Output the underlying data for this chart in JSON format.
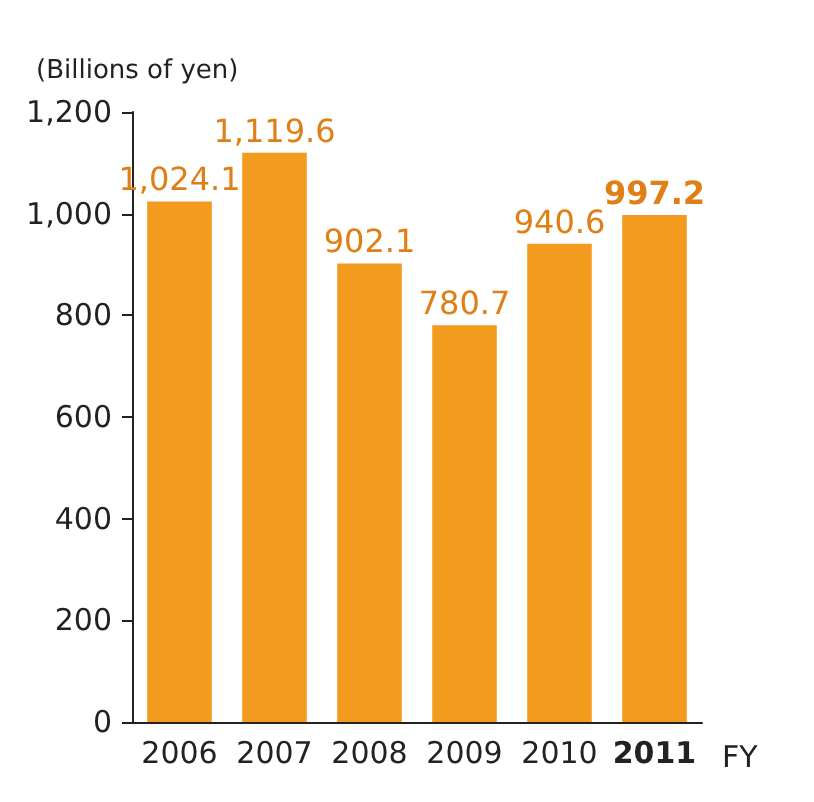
{
  "chart_data": {
    "type": "bar",
    "ylabel": "(Billions of yen)",
    "xlabel": "FY",
    "categories": [
      "2006",
      "2007",
      "2008",
      "2009",
      "2010",
      "2011"
    ],
    "values": [
      1024.1,
      1119.6,
      902.1,
      780.7,
      940.6,
      997.2
    ],
    "value_labels": [
      "1,024.1",
      "1,119.6",
      "902.1",
      "780.7",
      "940.6",
      "997.2"
    ],
    "color": "#f39b1f",
    "ylim": [
      0,
      1200
    ],
    "yticks": [
      0,
      200,
      400,
      600,
      800,
      {
        "value": 1000,
        "label": "1,000"
      },
      {
        "value": 1200,
        "label": "1,200"
      }
    ],
    "grid": false
  }
}
